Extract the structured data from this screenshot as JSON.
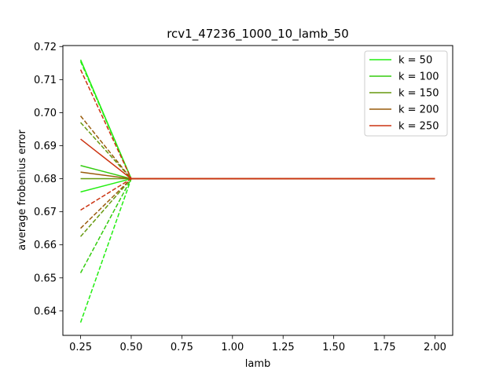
{
  "chart_data": {
    "type": "line",
    "title": "rcv1_47236_1000_10_lamb_50",
    "xlabel": "lamb",
    "ylabel": "average frobenius error",
    "xlim": [
      0.1625,
      2.0875
    ],
    "ylim": [
      0.6326,
      0.7203
    ],
    "xticks": [
      0.25,
      0.5,
      0.75,
      1.0,
      1.25,
      1.5,
      1.75,
      2.0
    ],
    "xtick_labels": [
      "0.25",
      "0.50",
      "0.75",
      "1.00",
      "1.25",
      "1.50",
      "1.75",
      "2.00"
    ],
    "yticks": [
      0.64,
      0.65,
      0.66,
      0.67,
      0.68,
      0.69,
      0.7,
      0.71,
      0.72
    ],
    "ytick_labels": [
      "0.64",
      "0.65",
      "0.66",
      "0.67",
      "0.68",
      "0.69",
      "0.70",
      "0.71",
      "0.72"
    ],
    "grid": false,
    "legend_position": "top-right",
    "legend": [
      {
        "label": "k = 50",
        "color": "#22ee11"
      },
      {
        "label": "k = 100",
        "color": "#33cc0f"
      },
      {
        "label": "k = 150",
        "color": "#66990e"
      },
      {
        "label": "k = 200",
        "color": "#995c0c"
      },
      {
        "label": "k = 250",
        "color": "#cc3311"
      }
    ],
    "x": [
      0.25,
      0.5,
      0.75,
      1.0,
      1.25,
      1.5,
      1.75,
      2.0
    ],
    "series": [
      {
        "name": "k = 50",
        "style": "solid",
        "color": "#22ee11",
        "values": [
          0.716,
          0.68,
          0.68,
          0.68,
          0.68,
          0.68,
          0.68,
          0.68
        ]
      },
      {
        "style": "dashed",
        "color": "#22ee11",
        "values": [
          0.6365,
          0.68,
          0.68,
          0.68,
          0.68,
          0.68,
          0.68,
          0.68
        ]
      },
      {
        "style": "solid",
        "color": "#22ee11",
        "values": [
          0.676,
          0.68,
          0.68,
          0.68,
          0.68,
          0.68,
          0.68,
          0.68
        ]
      },
      {
        "style": "dashed",
        "color": "#22ee11",
        "values": [
          0.7155,
          0.68,
          0.68,
          0.68,
          0.68,
          0.68,
          0.68,
          0.68
        ]
      },
      {
        "name": "k = 100",
        "style": "solid",
        "color": "#33cc0f",
        "values": [
          0.684,
          0.68,
          0.68,
          0.68,
          0.68,
          0.68,
          0.68,
          0.68
        ]
      },
      {
        "style": "dashed",
        "color": "#33cc0f",
        "values": [
          0.6515,
          0.68,
          0.68,
          0.68,
          0.68,
          0.68,
          0.68,
          0.68
        ]
      },
      {
        "name": "k = 150",
        "style": "solid",
        "color": "#66990e",
        "values": [
          0.68,
          0.68,
          0.68,
          0.68,
          0.68,
          0.68,
          0.68,
          0.68
        ]
      },
      {
        "style": "dashed",
        "color": "#66990e",
        "values": [
          0.6625,
          0.68,
          0.68,
          0.68,
          0.68,
          0.68,
          0.68,
          0.68
        ]
      },
      {
        "style": "dashed",
        "color": "#66990e",
        "values": [
          0.697,
          0.68,
          0.68,
          0.68,
          0.68,
          0.68,
          0.68,
          0.68
        ]
      },
      {
        "name": "k = 200",
        "style": "solid",
        "color": "#995c0c",
        "values": [
          0.682,
          0.68,
          0.68,
          0.68,
          0.68,
          0.68,
          0.68,
          0.68
        ]
      },
      {
        "style": "dashed",
        "color": "#995c0c",
        "values": [
          0.699,
          0.68,
          0.68,
          0.68,
          0.68,
          0.68,
          0.68,
          0.68
        ]
      },
      {
        "style": "dashed",
        "color": "#995c0c",
        "values": [
          0.665,
          0.68,
          0.68,
          0.68,
          0.68,
          0.68,
          0.68,
          0.68
        ]
      },
      {
        "name": "k = 250",
        "style": "solid",
        "color": "#cc3311",
        "values": [
          0.692,
          0.68,
          0.68,
          0.68,
          0.68,
          0.68,
          0.68,
          0.68
        ]
      },
      {
        "style": "dashed",
        "color": "#cc3311",
        "values": [
          0.713,
          0.68,
          0.68,
          0.68,
          0.68,
          0.68,
          0.68,
          0.68
        ]
      },
      {
        "style": "dashed",
        "color": "#cc3311",
        "values": [
          0.6705,
          0.68,
          0.68,
          0.68,
          0.68,
          0.68,
          0.68,
          0.68
        ]
      }
    ]
  }
}
